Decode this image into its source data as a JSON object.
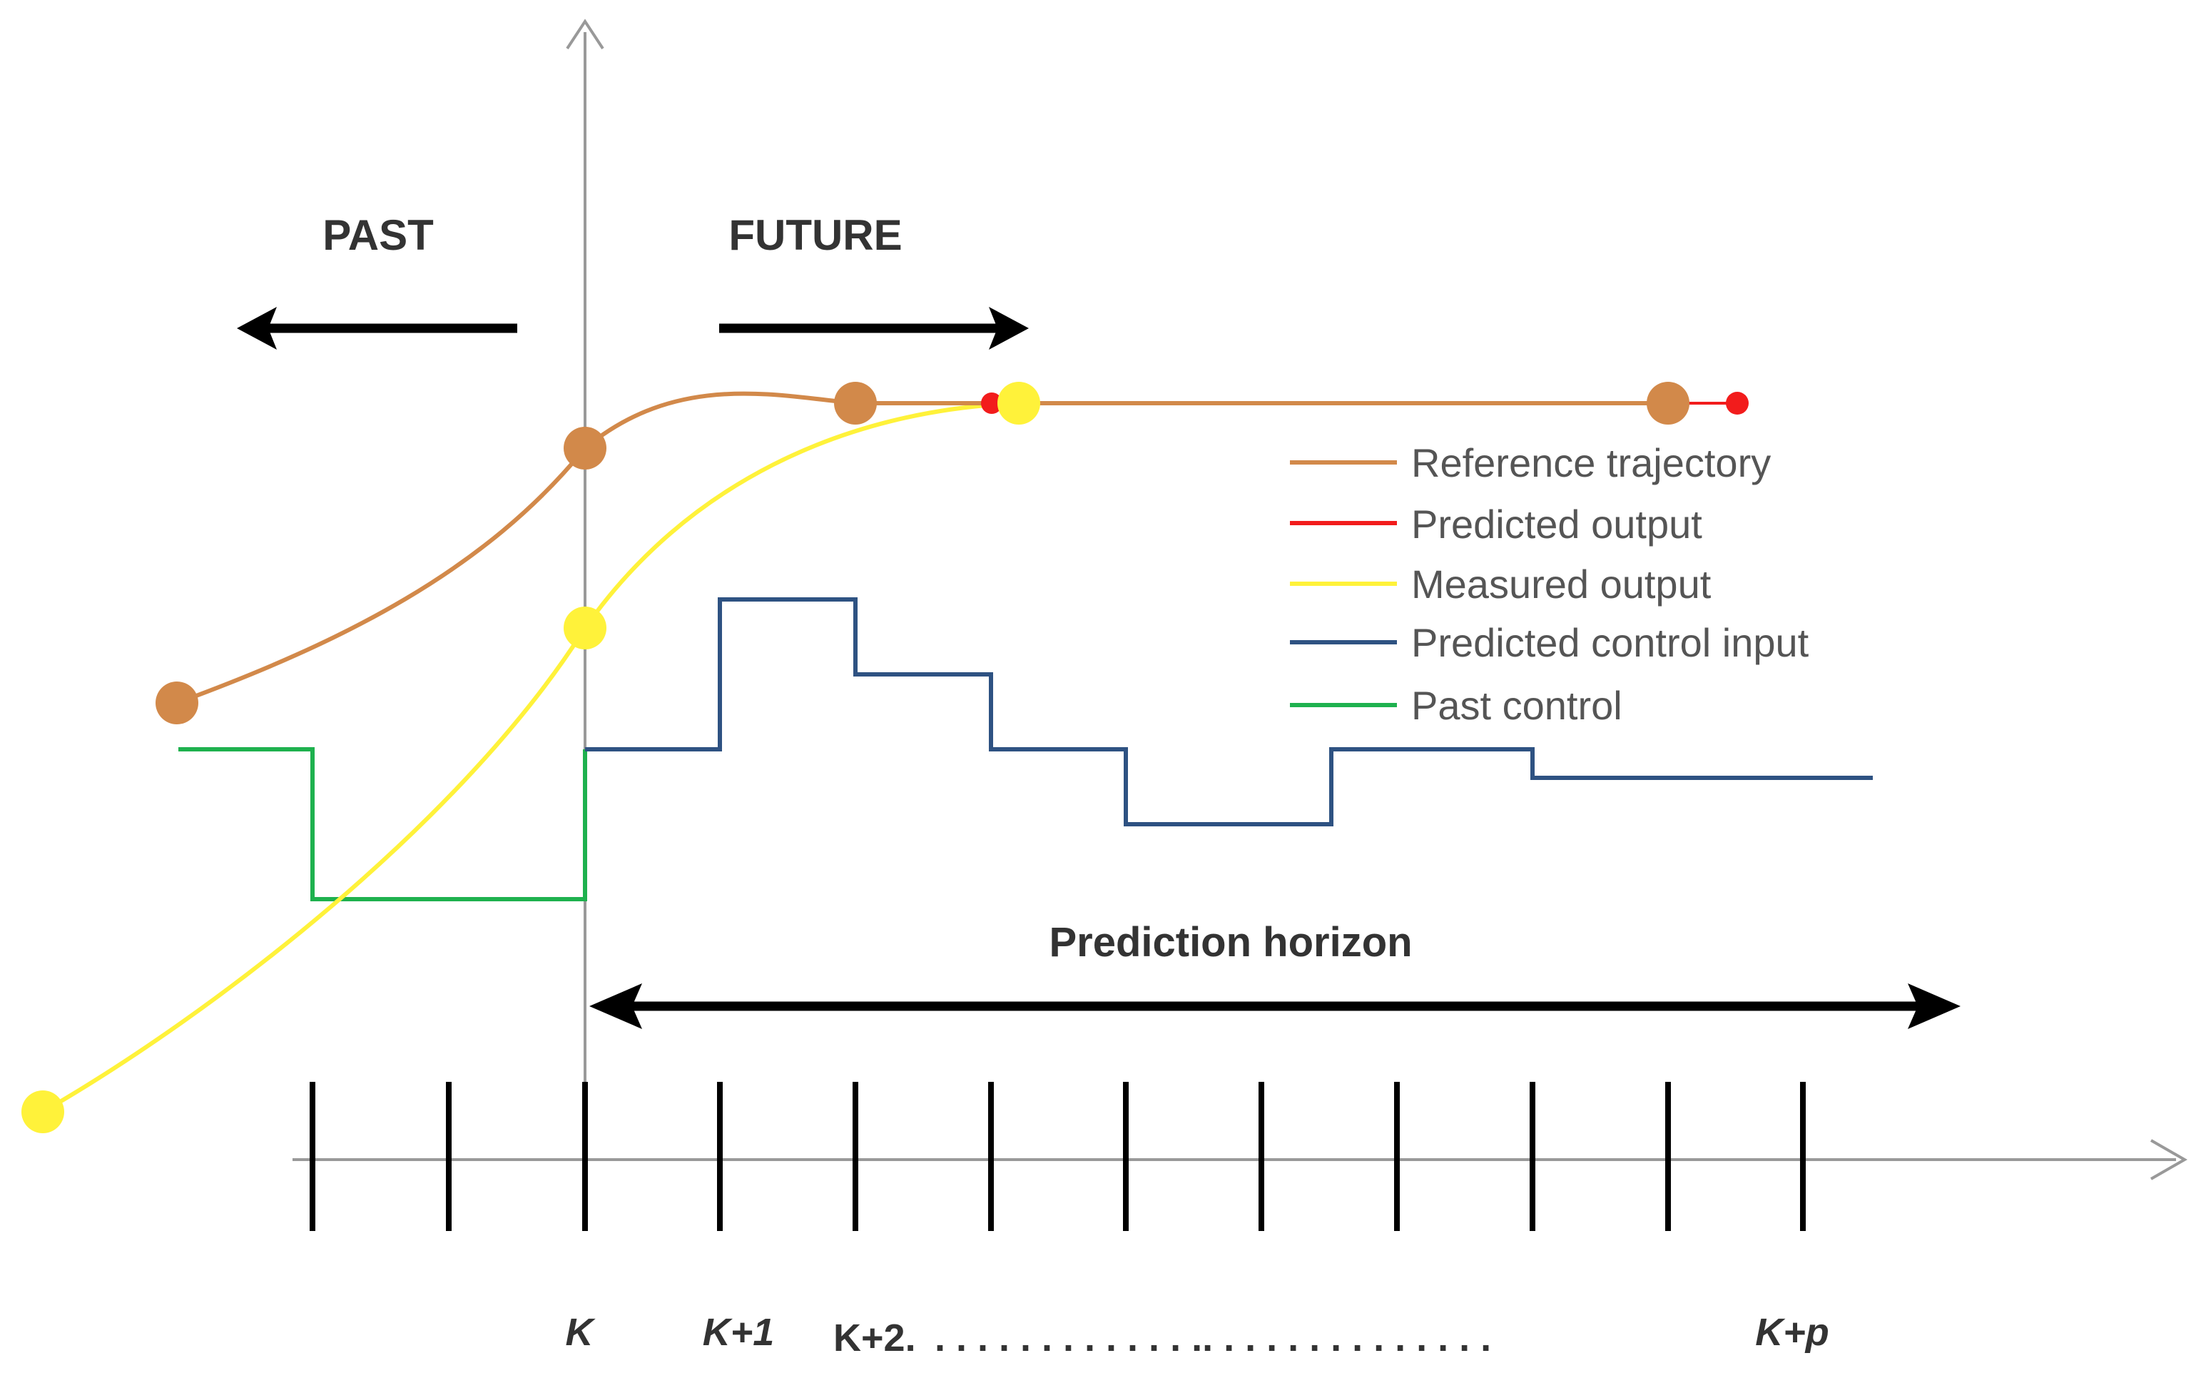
{
  "labels": {
    "past": "PAST",
    "future": "FUTURE",
    "prediction_horizon": "Prediction horizon"
  },
  "legend": [
    {
      "label": "Reference trajectory",
      "color": "#D2894A"
    },
    {
      "label": "Predicted output",
      "color": "#F21C1C"
    },
    {
      "label": "Measured output",
      "color": "#FFF23A"
    },
    {
      "label": "Predicted control input",
      "color": "#2E5282"
    },
    {
      "label": "Past control",
      "color": "#1EB14E"
    }
  ],
  "ticks": {
    "k": "K",
    "k1": "K+1",
    "k2": "K+2.",
    "dots": ". . . . . . . . . . . . .. . . . . . . . . . . . . .",
    "kp": "K+p"
  },
  "colors": {
    "reference": "#D2894A",
    "predicted_output": "#F21C1C",
    "measured": "#FFF23A",
    "control_input": "#2E5282",
    "past_control": "#1EB14E",
    "axis": "#999999",
    "ticks": "#000000"
  }
}
